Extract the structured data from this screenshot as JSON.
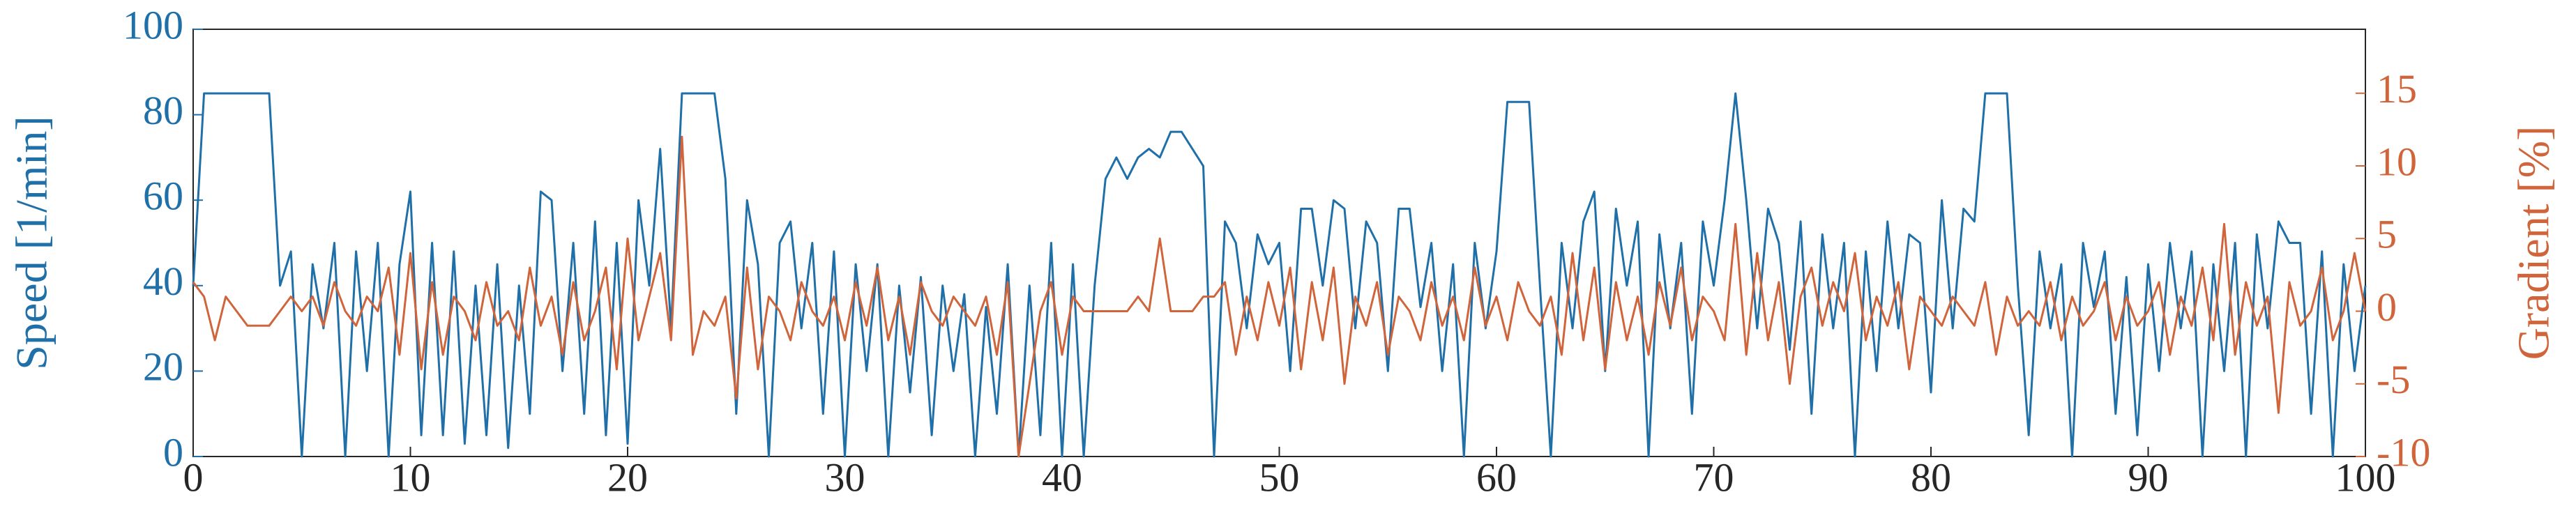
{
  "chart_data": {
    "type": "line",
    "x": [
      0,
      0.5,
      1,
      1.5,
      2,
      2.5,
      3,
      3.5,
      4,
      4.5,
      5,
      5.5,
      6,
      6.5,
      7,
      7.5,
      8,
      8.5,
      9,
      9.5,
      10,
      10.5,
      11,
      11.5,
      12,
      12.5,
      13,
      13.5,
      14,
      14.5,
      15,
      15.5,
      16,
      16.5,
      17,
      17.5,
      18,
      18.5,
      19,
      19.5,
      20,
      20.5,
      21,
      21.5,
      22,
      22.5,
      23,
      23.5,
      24,
      24.5,
      25,
      25.5,
      26,
      26.5,
      27,
      27.5,
      28,
      28.5,
      29,
      29.5,
      30,
      30.5,
      31,
      31.5,
      32,
      32.5,
      33,
      33.5,
      34,
      34.5,
      35,
      35.5,
      36,
      36.5,
      37,
      37.5,
      38,
      38.5,
      39,
      39.5,
      40,
      40.5,
      41,
      41.5,
      42,
      42.5,
      43,
      43.5,
      44,
      44.5,
      45,
      45.5,
      46,
      46.5,
      47,
      47.5,
      48,
      48.5,
      49,
      49.5,
      50,
      50.5,
      51,
      51.5,
      52,
      52.5,
      53,
      53.5,
      54,
      54.5,
      55,
      55.5,
      56,
      56.5,
      57,
      57.5,
      58,
      58.5,
      59,
      59.5,
      60,
      60.5,
      61,
      61.5,
      62,
      62.5,
      63,
      63.5,
      64,
      64.5,
      65,
      65.5,
      66,
      66.5,
      67,
      67.5,
      68,
      68.5,
      69,
      69.5,
      70,
      70.5,
      71,
      71.5,
      72,
      72.5,
      73,
      73.5,
      74,
      74.5,
      75,
      75.5,
      76,
      76.5,
      77,
      77.5,
      78,
      78.5,
      79,
      79.5,
      80,
      80.5,
      81,
      81.5,
      82,
      82.5,
      83,
      83.5,
      84,
      84.5,
      85,
      85.5,
      86,
      86.5,
      87,
      87.5,
      88,
      88.5,
      89,
      89.5,
      90,
      90.5,
      91,
      91.5,
      92,
      92.5,
      93,
      93.5,
      94,
      94.5,
      95,
      95.5,
      96,
      96.5,
      97,
      97.5,
      98,
      98.5,
      99,
      99.5,
      100
    ],
    "series": [
      {
        "name": "Speed [1/min]",
        "color": "#1f6fa8",
        "values": [
          40,
          85,
          85,
          85,
          85,
          85,
          85,
          85,
          40,
          48,
          0,
          45,
          30,
          50,
          0,
          48,
          20,
          50,
          0,
          45,
          62,
          5,
          50,
          5,
          48,
          3,
          40,
          5,
          45,
          2,
          40,
          10,
          62,
          60,
          20,
          50,
          10,
          55,
          5,
          50,
          3,
          60,
          40,
          72,
          30,
          85,
          85,
          85,
          85,
          65,
          10,
          60,
          45,
          0,
          50,
          55,
          30,
          50,
          10,
          48,
          0,
          45,
          20,
          45,
          0,
          40,
          15,
          42,
          5,
          40,
          20,
          38,
          0,
          35,
          10,
          45,
          0,
          40,
          5,
          50,
          0,
          45,
          0,
          40,
          65,
          70,
          65,
          70,
          72,
          70,
          76,
          76,
          72,
          68,
          0,
          55,
          50,
          30,
          52,
          45,
          50,
          20,
          58,
          58,
          40,
          60,
          58,
          30,
          55,
          50,
          20,
          58,
          58,
          35,
          50,
          20,
          45,
          0,
          50,
          30,
          48,
          83,
          83,
          83,
          40,
          0,
          50,
          30,
          55,
          62,
          20,
          58,
          40,
          55,
          0,
          52,
          30,
          50,
          10,
          55,
          40,
          60,
          85,
          60,
          30,
          58,
          50,
          25,
          55,
          10,
          52,
          30,
          50,
          0,
          48,
          20,
          55,
          30,
          52,
          50,
          15,
          60,
          30,
          58,
          55,
          85,
          85,
          85,
          40,
          5,
          48,
          30,
          45,
          0,
          50,
          35,
          48,
          10,
          42,
          5,
          45,
          20,
          50,
          30,
          48,
          0,
          45,
          20,
          50,
          0,
          52,
          30,
          55,
          50,
          50,
          10,
          48,
          0,
          45,
          20,
          40
        ]
      },
      {
        "name": "Gradient [%]",
        "color": "#d0643a",
        "axis": "y2",
        "values": [
          2,
          1,
          -2,
          1,
          0,
          -1,
          -1,
          -1,
          0,
          1,
          0,
          1,
          -1,
          2,
          0,
          -1,
          1,
          0,
          3,
          -3,
          4,
          -4,
          2,
          -3,
          1,
          0,
          -2,
          2,
          -1,
          0,
          -2,
          3,
          -1,
          1,
          -3,
          2,
          -2,
          0,
          3,
          -4,
          5,
          -2,
          1,
          4,
          -2,
          12,
          -3,
          0,
          -1,
          1,
          -6,
          3,
          -4,
          1,
          0,
          -2,
          2,
          0,
          -1,
          1,
          -2,
          2,
          -1,
          3,
          -2,
          1,
          -3,
          2,
          0,
          -1,
          1,
          0,
          -1,
          1,
          -3,
          2,
          -10,
          -5,
          0,
          2,
          -3,
          1,
          0,
          0,
          0,
          0,
          0,
          1,
          0,
          5,
          0,
          0,
          0,
          1,
          1,
          2,
          -3,
          1,
          -2,
          2,
          -1,
          3,
          -4,
          2,
          -2,
          3,
          -5,
          1,
          -1,
          2,
          -3,
          1,
          0,
          -2,
          2,
          -1,
          1,
          -2,
          3,
          -1,
          1,
          -2,
          2,
          0,
          -1,
          1,
          -3,
          4,
          -2,
          3,
          -4,
          2,
          -2,
          1,
          -3,
          2,
          -1,
          3,
          -2,
          1,
          0,
          -2,
          6,
          -3,
          4,
          -2,
          2,
          -5,
          1,
          3,
          -1,
          2,
          0,
          4,
          -2,
          1,
          -1,
          2,
          -4,
          1,
          0,
          -1,
          1,
          0,
          -1,
          2,
          -3,
          1,
          -1,
          0,
          -1,
          2,
          -2,
          1,
          -1,
          0,
          2,
          -2,
          1,
          -1,
          0,
          2,
          -3,
          1,
          -1,
          3,
          -2,
          6,
          -3,
          2,
          -1,
          1,
          -7,
          2,
          -1,
          0,
          3,
          -2,
          0,
          4,
          0
        ]
      }
    ],
    "xlim": [
      0,
      100
    ],
    "xticks": [
      0,
      10,
      20,
      30,
      40,
      50,
      60,
      70,
      80,
      90,
      100
    ],
    "ylim": [
      0,
      100
    ],
    "yticks": [
      0,
      20,
      40,
      60,
      80,
      100
    ],
    "y2lim": [
      -10,
      19.4
    ],
    "y2ticks": [
      -10,
      -5,
      0,
      5,
      10,
      15
    ]
  }
}
